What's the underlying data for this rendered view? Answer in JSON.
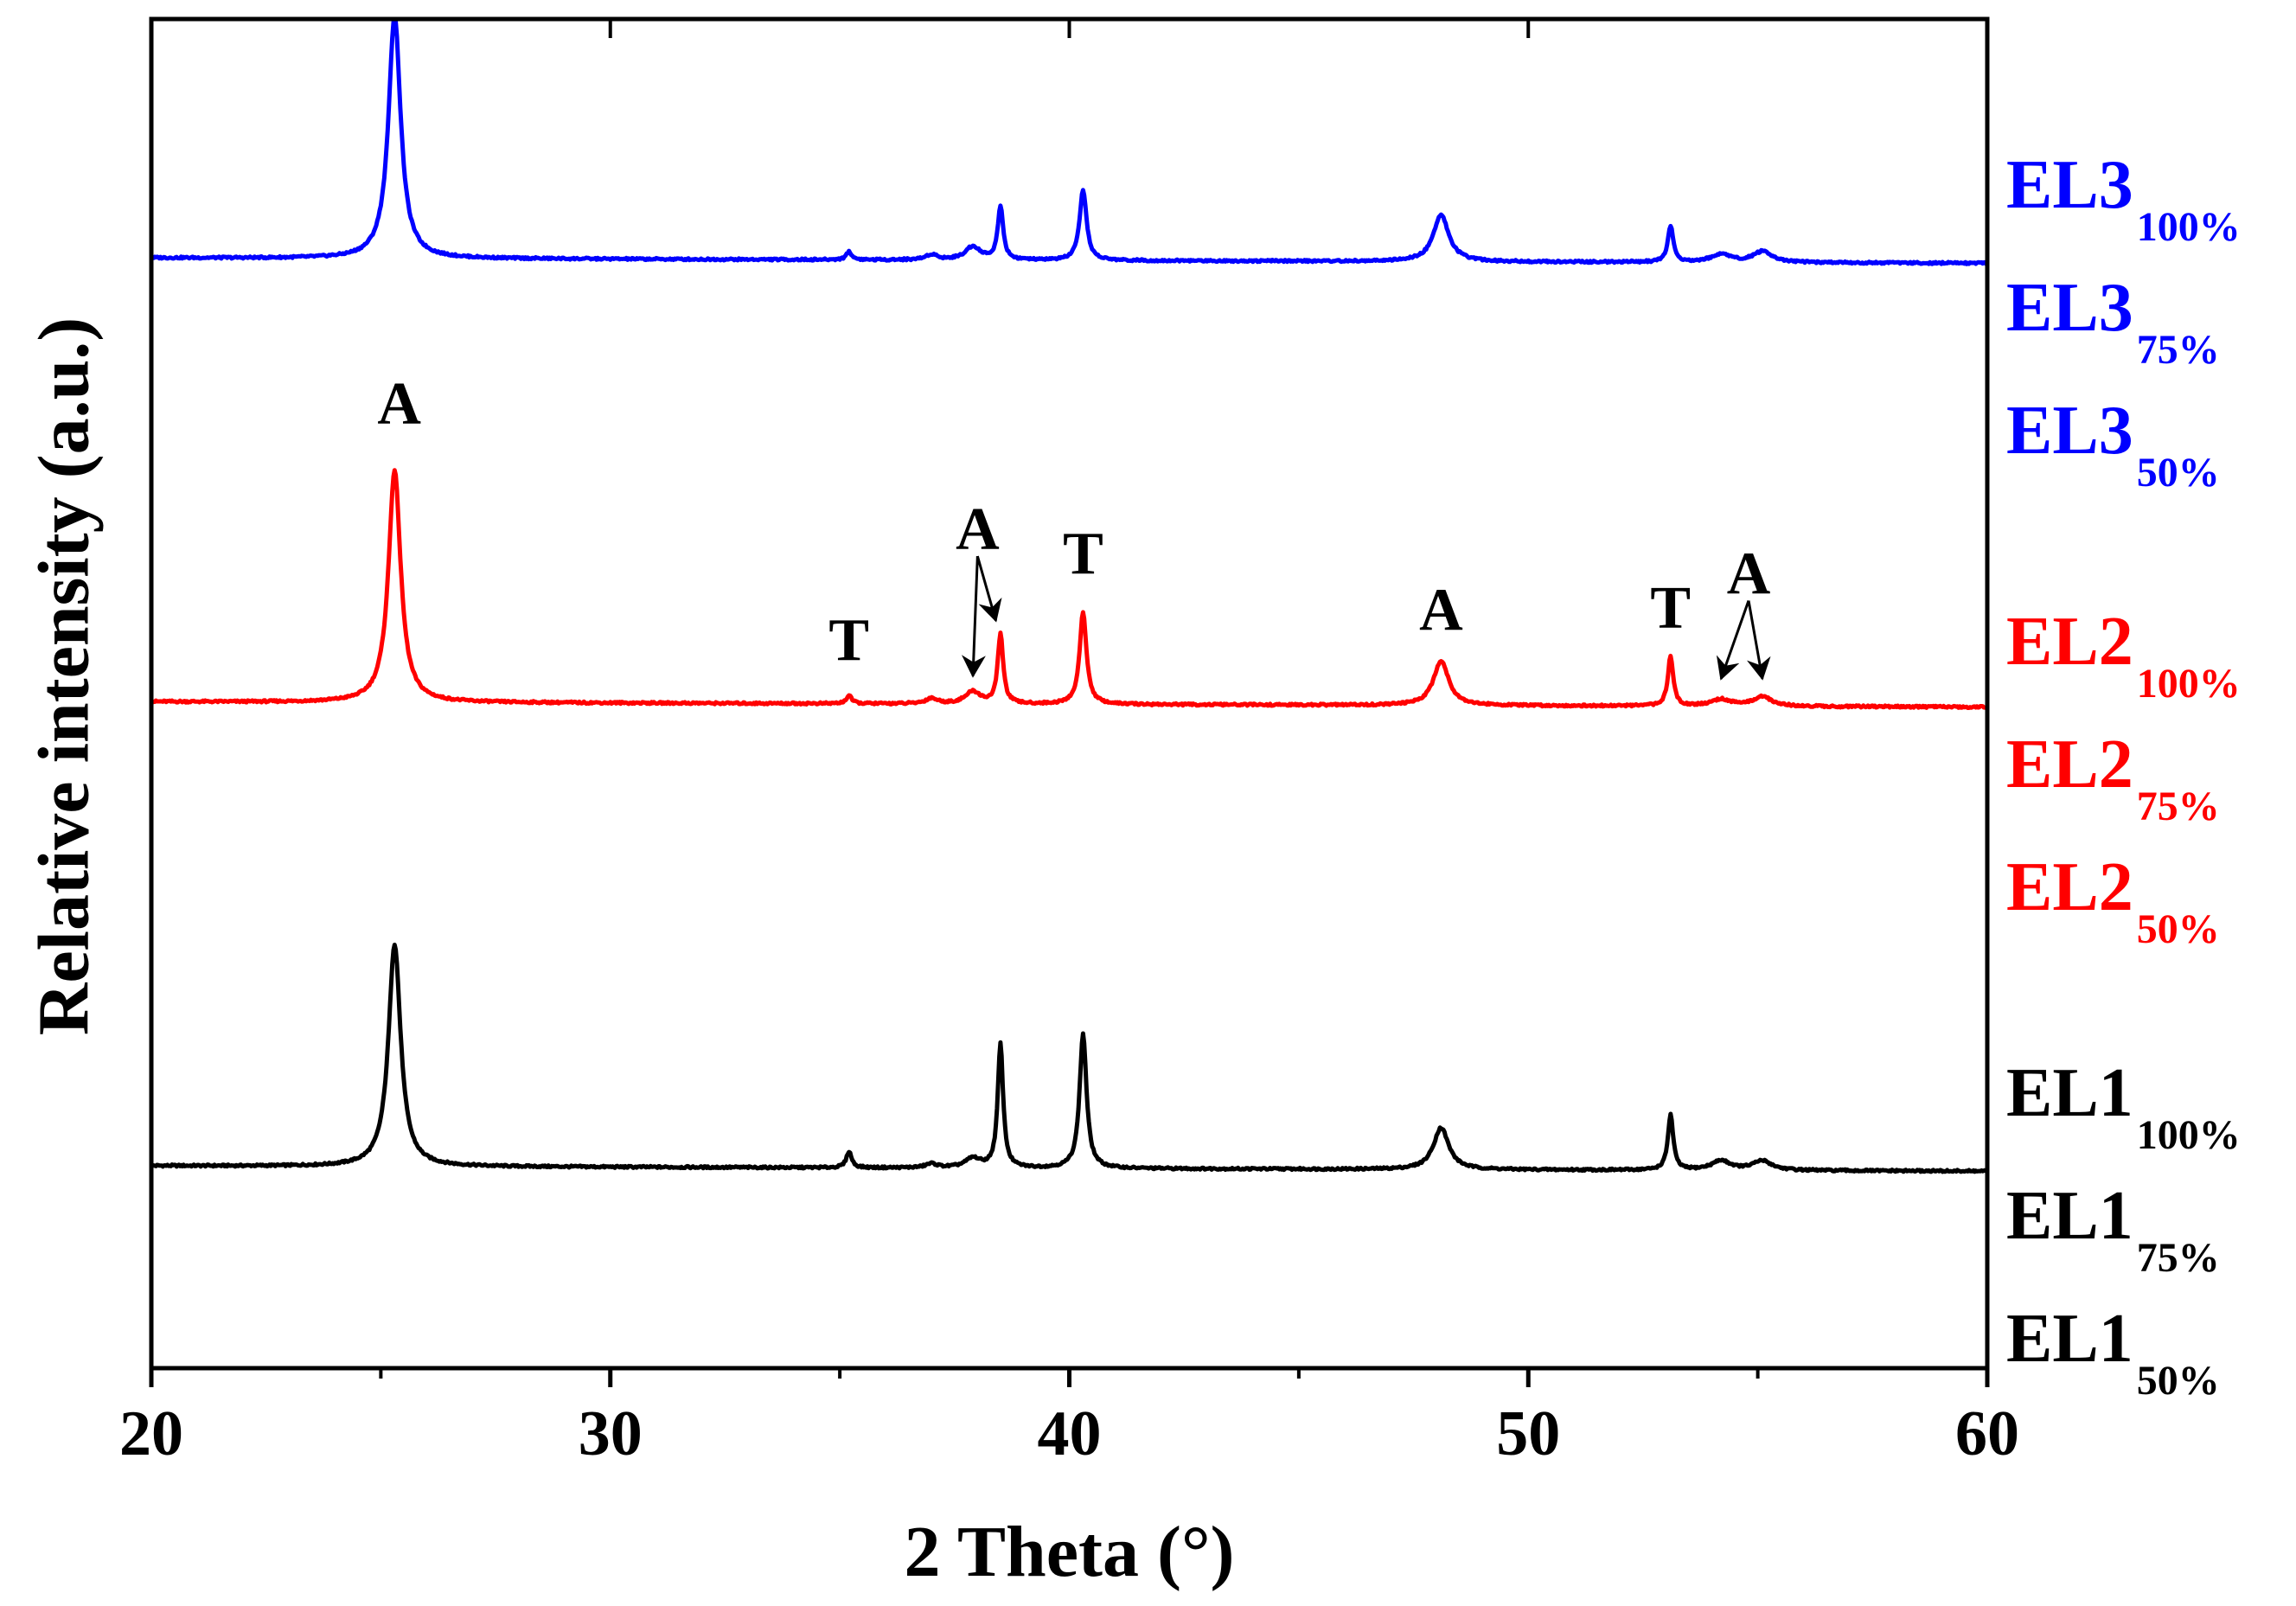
{
  "chart_data": {
    "type": "line",
    "title": "",
    "xlabel": "2 Theta (°)",
    "ylabel": "Relative intensity (a.u.)",
    "xlim": [
      20,
      60
    ],
    "ylim": [
      0,
      1
    ],
    "x_ticks": [
      20,
      30,
      40,
      50,
      60
    ],
    "x_tick_labels": [
      "20",
      "30",
      "40",
      "50",
      "60"
    ],
    "colors": {
      "EL1": "#000000",
      "EL2": "#ff0000",
      "EL3": "#0000ff"
    },
    "series": [
      {
        "name": "EL1",
        "color": "#000000",
        "baseline": 0.15,
        "peaks": [
          {
            "x": 25.3,
            "h": 0.165,
            "w": 0.16
          },
          {
            "x": 35.2,
            "h": 0.012,
            "w": 0.07
          },
          {
            "x": 37.0,
            "h": 0.003,
            "w": 0.15
          },
          {
            "x": 37.9,
            "h": 0.007,
            "w": 0.2
          },
          {
            "x": 38.5,
            "h": 0.092,
            "w": 0.07
          },
          {
            "x": 40.3,
            "h": 0.1,
            "w": 0.09
          },
          {
            "x": 48.1,
            "h": 0.031,
            "w": 0.2
          },
          {
            "x": 53.1,
            "h": 0.041,
            "w": 0.07
          },
          {
            "x": 54.2,
            "h": 0.007,
            "w": 0.25
          },
          {
            "x": 55.1,
            "h": 0.007,
            "w": 0.25
          }
        ]
      },
      {
        "name": "EL2",
        "color": "#ff0000",
        "baseline": 0.494,
        "peaks": [
          {
            "x": 25.3,
            "h": 0.172,
            "w": 0.16
          },
          {
            "x": 35.2,
            "h": 0.006,
            "w": 0.07
          },
          {
            "x": 37.0,
            "h": 0.004,
            "w": 0.15
          },
          {
            "x": 37.9,
            "h": 0.009,
            "w": 0.2
          },
          {
            "x": 38.5,
            "h": 0.052,
            "w": 0.07
          },
          {
            "x": 40.3,
            "h": 0.068,
            "w": 0.09
          },
          {
            "x": 48.1,
            "h": 0.033,
            "w": 0.2
          },
          {
            "x": 53.1,
            "h": 0.037,
            "w": 0.07
          },
          {
            "x": 54.2,
            "h": 0.005,
            "w": 0.25
          },
          {
            "x": 55.1,
            "h": 0.007,
            "w": 0.25
          }
        ]
      },
      {
        "name": "EL3",
        "color": "#0000ff",
        "baseline": 0.823,
        "peaks": [
          {
            "x": 25.3,
            "h": 0.18,
            "w": 0.16
          },
          {
            "x": 35.2,
            "h": 0.006,
            "w": 0.07
          },
          {
            "x": 37.0,
            "h": 0.004,
            "w": 0.15
          },
          {
            "x": 37.9,
            "h": 0.01,
            "w": 0.2
          },
          {
            "x": 38.5,
            "h": 0.04,
            "w": 0.07
          },
          {
            "x": 40.3,
            "h": 0.052,
            "w": 0.09
          },
          {
            "x": 48.1,
            "h": 0.035,
            "w": 0.2
          },
          {
            "x": 53.1,
            "h": 0.027,
            "w": 0.07
          },
          {
            "x": 54.2,
            "h": 0.006,
            "w": 0.25
          },
          {
            "x": 55.1,
            "h": 0.008,
            "w": 0.25
          }
        ]
      }
    ],
    "annotations": [
      {
        "text": "A",
        "x": 25.4,
        "y": 0.7,
        "arrows": []
      },
      {
        "text": "T",
        "x": 35.2,
        "y": 0.525,
        "arrows": []
      },
      {
        "text": "A",
        "x": 38.0,
        "y": 0.607,
        "arrows": [
          {
            "x": 37.9,
            "y": 0.513
          },
          {
            "x": 38.4,
            "y": 0.554
          }
        ]
      },
      {
        "text": "T",
        "x": 40.3,
        "y": 0.589,
        "arrows": []
      },
      {
        "text": "A",
        "x": 48.1,
        "y": 0.547,
        "arrows": []
      },
      {
        "text": "T",
        "x": 53.1,
        "y": 0.549,
        "arrows": []
      },
      {
        "text": "A",
        "x": 54.8,
        "y": 0.574,
        "arrows": [
          {
            "x": 54.2,
            "y": 0.511
          },
          {
            "x": 55.1,
            "y": 0.511
          }
        ]
      }
    ],
    "legend": {
      "placement": "right",
      "groups": [
        {
          "color": "#0000ff",
          "entries": [
            {
              "main": "EL3",
              "sub": "100%"
            },
            {
              "main": "EL3",
              "sub": "75%"
            },
            {
              "main": "EL3",
              "sub": "50%"
            }
          ]
        },
        {
          "color": "#ff0000",
          "entries": [
            {
              "main": "EL2",
              "sub": "100%"
            },
            {
              "main": "EL2",
              "sub": "75%"
            },
            {
              "main": "EL2",
              "sub": "50%"
            }
          ]
        },
        {
          "color": "#000000",
          "entries": [
            {
              "main": "EL1",
              "sub": "100%"
            },
            {
              "main": "EL1",
              "sub": "75%"
            },
            {
              "main": "EL1",
              "sub": "50%"
            }
          ]
        }
      ]
    }
  }
}
